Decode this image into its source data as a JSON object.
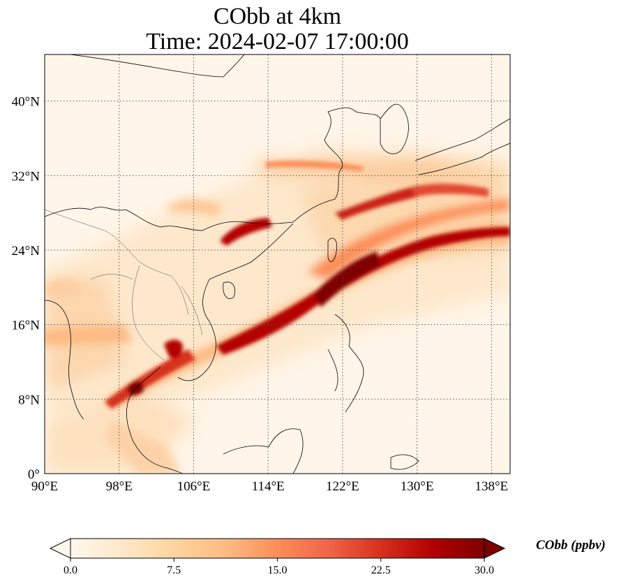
{
  "title": "CObb at 4km",
  "subtitle": "Time: 2024-02-07 17:00:00",
  "map": {
    "lon_range": [
      90,
      140
    ],
    "lat_range": [
      0,
      45
    ],
    "lon_ticks": [
      "90°E",
      "98°E",
      "106°E",
      "114°E",
      "122°E",
      "130°E",
      "138°E"
    ],
    "lat_ticks": [
      "0°",
      "8°N",
      "16°N",
      "24°N",
      "32°N",
      "40°N"
    ],
    "lon_tick_values": [
      90,
      98,
      106,
      114,
      122,
      130,
      138
    ],
    "lat_tick_values": [
      0,
      8,
      16,
      24,
      32,
      40
    ],
    "gridlines": true,
    "gridline_style": "dotted",
    "background_color": "#fff5e8",
    "coastline_color": "#000000"
  },
  "colorbar": {
    "label": "CObb (ppbv)",
    "min": 0.0,
    "max": 30.0,
    "ticks": [
      "0.0",
      "7.5",
      "15.0",
      "22.5",
      "30.0"
    ],
    "tick_values": [
      0,
      7.5,
      15,
      22.5,
      30
    ],
    "colors": [
      "#fff7ec",
      "#fee8c8",
      "#fdd49e",
      "#fdbb84",
      "#fc8d59",
      "#ef6548",
      "#d7301f",
      "#b30000",
      "#7f0000"
    ],
    "extend": "both",
    "orientation": "horizontal",
    "colormap": "OrRd"
  }
}
